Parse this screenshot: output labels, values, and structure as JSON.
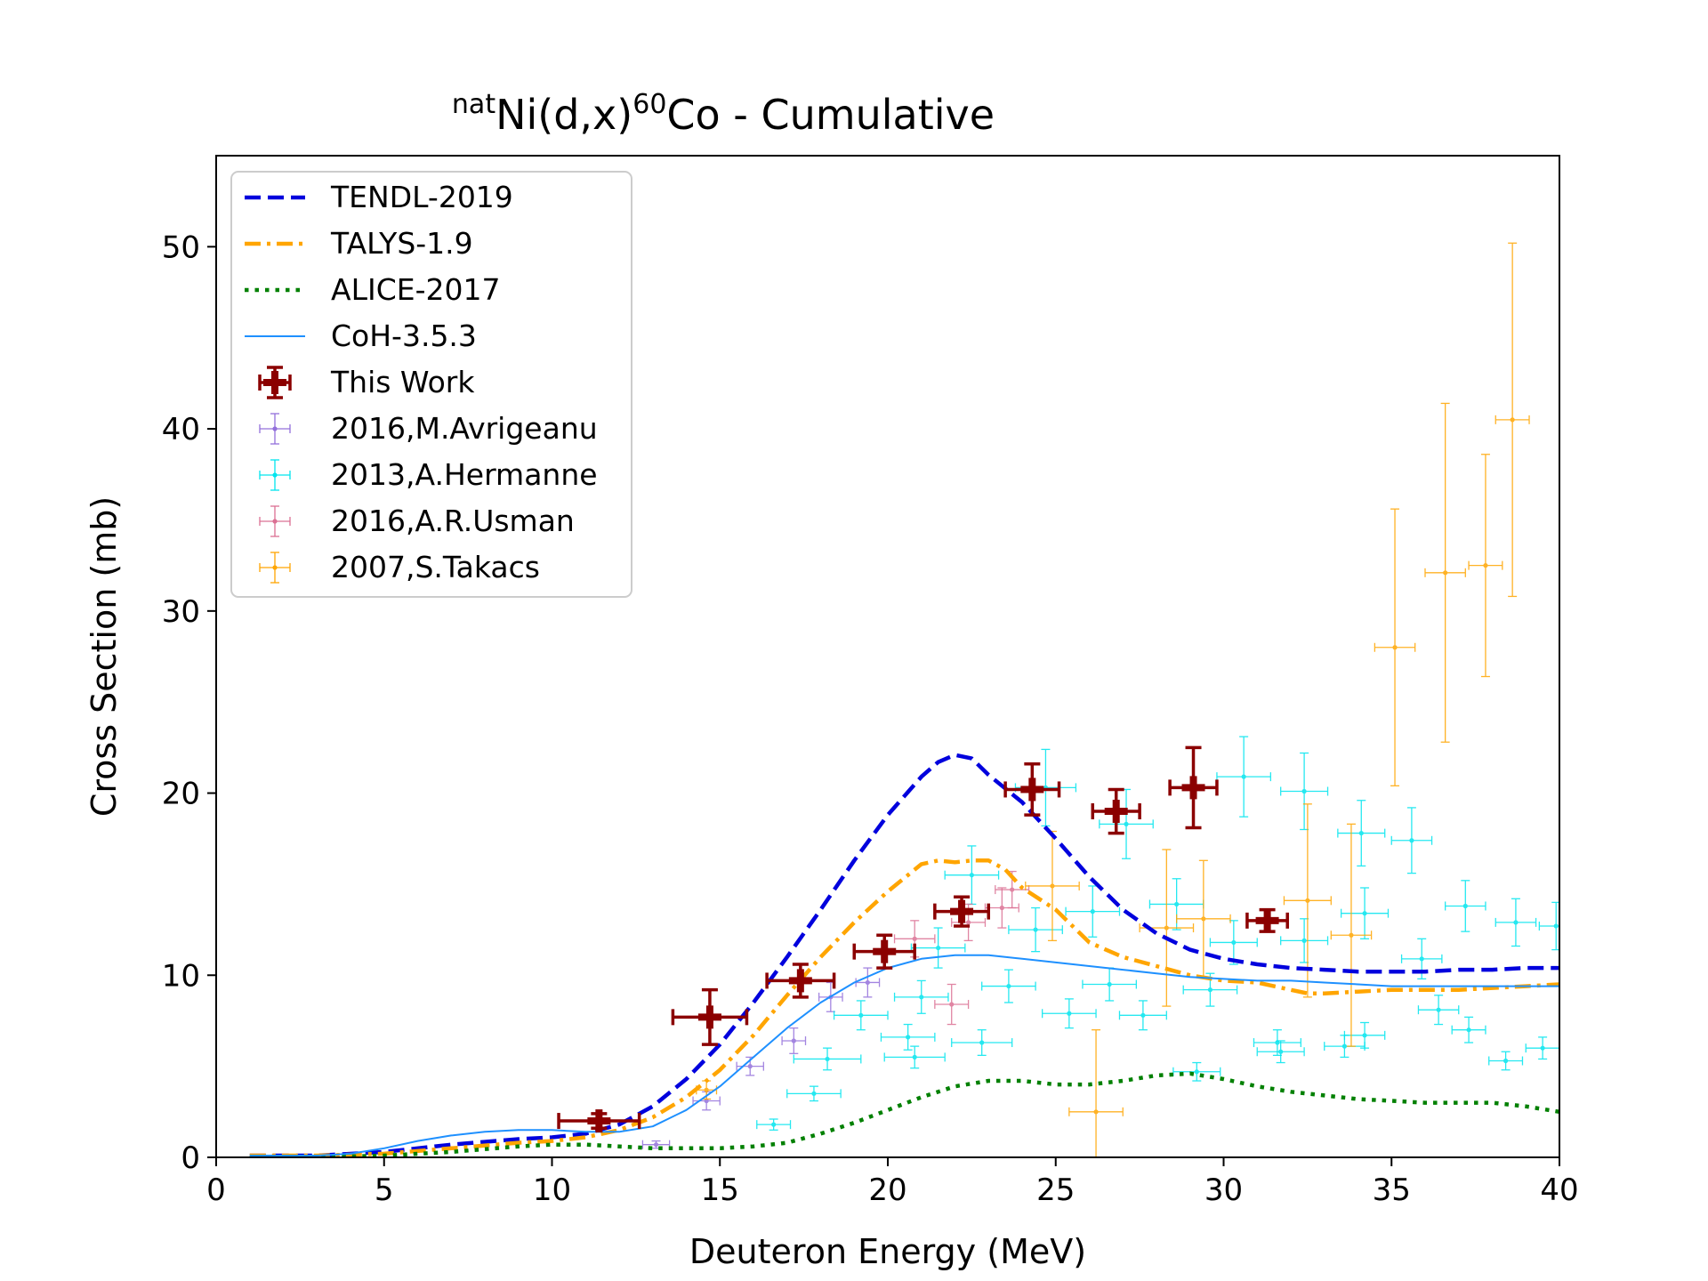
{
  "chart_data": {
    "type": "scatter",
    "title": {
      "prefix_sup": "nat",
      "element": "Ni(d,x)",
      "product_sup": "60",
      "product": "Co - Cumulative"
    },
    "xlabel": "Deuteron Energy (MeV)",
    "ylabel": "Cross Section (mb)",
    "xlim": [
      0,
      40
    ],
    "ylim": [
      0,
      55
    ],
    "xticks": [
      "0",
      "5",
      "10",
      "15",
      "20",
      "25",
      "30",
      "35",
      "40"
    ],
    "yticks": [
      "0",
      "10",
      "20",
      "30",
      "40",
      "50"
    ],
    "grid": false,
    "legend_position": "upper-left",
    "curves": [
      {
        "name": "TENDL-2019",
        "color": "#0000dd",
        "style": "dashed",
        "x": [
          1,
          3,
          5,
          7,
          9,
          10,
          11,
          12,
          13,
          14,
          15,
          16,
          17,
          18,
          19,
          20,
          21,
          21.5,
          22,
          22.5,
          23,
          24,
          25,
          26,
          27,
          28,
          29,
          30,
          31,
          32,
          33,
          34,
          35,
          36,
          37,
          38,
          39,
          40
        ],
        "y": [
          0.1,
          0.1,
          0.3,
          0.7,
          1.0,
          1.1,
          1.3,
          1.8,
          2.8,
          4.3,
          6.2,
          8.5,
          11.0,
          13.6,
          16.3,
          18.8,
          20.9,
          21.7,
          22.1,
          21.9,
          21.0,
          19.5,
          17.5,
          15.4,
          13.6,
          12.3,
          11.4,
          10.9,
          10.6,
          10.4,
          10.3,
          10.2,
          10.2,
          10.2,
          10.3,
          10.3,
          10.4,
          10.4
        ]
      },
      {
        "name": "TALYS-1.9",
        "color": "#ffa500",
        "style": "dashdot",
        "x": [
          1,
          3,
          5,
          7,
          9,
          10,
          11,
          12,
          13,
          14,
          15,
          16,
          17,
          18,
          19,
          20,
          21,
          21.5,
          22,
          22.5,
          23,
          23.5,
          24,
          25,
          26,
          27,
          28,
          29,
          30,
          31,
          32,
          32.5,
          33,
          34,
          35,
          36,
          37,
          38,
          39,
          40
        ],
        "y": [
          0.1,
          0.1,
          0.2,
          0.5,
          0.8,
          0.9,
          1.1,
          1.5,
          2.2,
          3.3,
          4.8,
          6.7,
          8.9,
          11.0,
          12.9,
          14.6,
          16.1,
          16.3,
          16.2,
          16.3,
          16.3,
          15.8,
          14.8,
          13.6,
          11.8,
          11.0,
          10.5,
          10.0,
          9.7,
          9.6,
          9.2,
          9.0,
          9.0,
          9.1,
          9.2,
          9.2,
          9.2,
          9.3,
          9.4,
          9.5
        ]
      },
      {
        "name": "ALICE-2017",
        "color": "#008000",
        "style": "dotted",
        "x": [
          1,
          3,
          5,
          7,
          9,
          10,
          11,
          12,
          13,
          14,
          15,
          16,
          17,
          18,
          19,
          20,
          21,
          22,
          23,
          24,
          25,
          26,
          27,
          28,
          29,
          30,
          31,
          32,
          33,
          34,
          35,
          36,
          37,
          38,
          39,
          40
        ],
        "y": [
          0.0,
          0.0,
          0.1,
          0.3,
          0.6,
          0.7,
          0.7,
          0.6,
          0.5,
          0.5,
          0.5,
          0.6,
          0.8,
          1.3,
          1.9,
          2.6,
          3.3,
          3.9,
          4.2,
          4.2,
          4.0,
          4.0,
          4.2,
          4.5,
          4.6,
          4.3,
          3.9,
          3.6,
          3.4,
          3.2,
          3.1,
          3.0,
          3.0,
          3.0,
          2.8,
          2.5
        ]
      },
      {
        "name": "CoH-3.5.3",
        "color": "#1e90ff",
        "style": "solid",
        "x": [
          1,
          3,
          4,
          5,
          6,
          7,
          8,
          9,
          10,
          11,
          12,
          13,
          14,
          15,
          16,
          17,
          18,
          19,
          20,
          21,
          22,
          23,
          24,
          25,
          26,
          27,
          28,
          29,
          30,
          31,
          32,
          33,
          34,
          35,
          36,
          37,
          38,
          39,
          40
        ],
        "y": [
          0.1,
          0.1,
          0.2,
          0.5,
          0.9,
          1.2,
          1.4,
          1.5,
          1.5,
          1.4,
          1.4,
          1.7,
          2.6,
          3.9,
          5.5,
          7.1,
          8.5,
          9.6,
          10.4,
          10.9,
          11.1,
          11.1,
          10.9,
          10.7,
          10.5,
          10.3,
          10.1,
          9.9,
          9.8,
          9.7,
          9.7,
          9.6,
          9.5,
          9.4,
          9.4,
          9.4,
          9.4,
          9.4,
          9.4
        ]
      }
    ],
    "series": [
      {
        "name": "This Work",
        "color": "#8b0000",
        "marker": "plus",
        "points": [
          {
            "x": 11.4,
            "y": 2.0,
            "xerr": 1.2,
            "yerr": 0.4
          },
          {
            "x": 14.7,
            "y": 7.7,
            "xerr": 1.1,
            "yerr": 1.5
          },
          {
            "x": 17.4,
            "y": 9.7,
            "xerr": 1.0,
            "yerr": 0.9
          },
          {
            "x": 19.9,
            "y": 11.3,
            "xerr": 0.9,
            "yerr": 0.9
          },
          {
            "x": 22.2,
            "y": 13.5,
            "xerr": 0.8,
            "yerr": 0.8
          },
          {
            "x": 24.3,
            "y": 20.2,
            "xerr": 0.8,
            "yerr": 1.4
          },
          {
            "x": 26.8,
            "y": 19.0,
            "xerr": 0.7,
            "yerr": 1.2
          },
          {
            "x": 29.1,
            "y": 20.3,
            "xerr": 0.7,
            "yerr": 2.2
          },
          {
            "x": 31.3,
            "y": 13.0,
            "xerr": 0.6,
            "yerr": 0.6
          }
        ]
      },
      {
        "name": "2016,M.Avrigeanu",
        "color": "#9370db",
        "marker": "dot",
        "points": [
          {
            "x": 13.1,
            "y": 0.7,
            "xerr": 0.4,
            "yerr": 0.2
          },
          {
            "x": 14.6,
            "y": 3.1,
            "xerr": 0.4,
            "yerr": 0.5
          },
          {
            "x": 15.9,
            "y": 5.0,
            "xerr": 0.4,
            "yerr": 0.5
          },
          {
            "x": 17.2,
            "y": 6.4,
            "xerr": 0.35,
            "yerr": 0.7
          },
          {
            "x": 18.3,
            "y": 8.8,
            "xerr": 0.35,
            "yerr": 0.8
          },
          {
            "x": 19.4,
            "y": 9.6,
            "xerr": 0.35,
            "yerr": 0.8
          }
        ]
      },
      {
        "name": "2013,A.Hermanne",
        "color": "#00e5ee",
        "marker": "dot",
        "points": [
          {
            "x": 16.6,
            "y": 1.8,
            "xerr": 0.5,
            "yerr": 0.3
          },
          {
            "x": 17.8,
            "y": 3.5,
            "xerr": 0.8,
            "yerr": 0.4
          },
          {
            "x": 18.2,
            "y": 5.4,
            "xerr": 1.0,
            "yerr": 0.6
          },
          {
            "x": 19.2,
            "y": 7.8,
            "xerr": 0.8,
            "yerr": 0.8
          },
          {
            "x": 20.6,
            "y": 6.6,
            "xerr": 0.8,
            "yerr": 0.7
          },
          {
            "x": 20.8,
            "y": 5.5,
            "xerr": 0.9,
            "yerr": 0.6
          },
          {
            "x": 21.0,
            "y": 8.8,
            "xerr": 0.8,
            "yerr": 0.9
          },
          {
            "x": 21.5,
            "y": 11.5,
            "xerr": 0.8,
            "yerr": 1.1
          },
          {
            "x": 22.5,
            "y": 15.5,
            "xerr": 0.8,
            "yerr": 1.6
          },
          {
            "x": 22.8,
            "y": 6.3,
            "xerr": 0.9,
            "yerr": 0.7
          },
          {
            "x": 23.6,
            "y": 9.4,
            "xerr": 0.8,
            "yerr": 0.9
          },
          {
            "x": 24.4,
            "y": 12.5,
            "xerr": 0.8,
            "yerr": 1.2
          },
          {
            "x": 24.7,
            "y": 20.3,
            "xerr": 0.9,
            "yerr": 2.1
          },
          {
            "x": 25.4,
            "y": 7.9,
            "xerr": 0.8,
            "yerr": 0.8
          },
          {
            "x": 26.1,
            "y": 13.5,
            "xerr": 0.8,
            "yerr": 1.4
          },
          {
            "x": 26.6,
            "y": 9.5,
            "xerr": 0.8,
            "yerr": 0.9
          },
          {
            "x": 27.1,
            "y": 18.3,
            "xerr": 0.8,
            "yerr": 1.9
          },
          {
            "x": 27.6,
            "y": 7.8,
            "xerr": 0.7,
            "yerr": 0.8
          },
          {
            "x": 28.6,
            "y": 13.9,
            "xerr": 0.8,
            "yerr": 1.4
          },
          {
            "x": 29.2,
            "y": 4.7,
            "xerr": 0.7,
            "yerr": 0.5
          },
          {
            "x": 29.6,
            "y": 9.2,
            "xerr": 0.8,
            "yerr": 0.9
          },
          {
            "x": 30.3,
            "y": 11.8,
            "xerr": 0.7,
            "yerr": 1.2
          },
          {
            "x": 30.6,
            "y": 20.9,
            "xerr": 0.8,
            "yerr": 2.2
          },
          {
            "x": 31.6,
            "y": 6.3,
            "xerr": 0.7,
            "yerr": 0.7
          },
          {
            "x": 31.7,
            "y": 5.8,
            "xerr": 0.7,
            "yerr": 0.6
          },
          {
            "x": 32.4,
            "y": 20.1,
            "xerr": 0.7,
            "yerr": 2.1
          },
          {
            "x": 32.4,
            "y": 11.9,
            "xerr": 0.7,
            "yerr": 1.2
          },
          {
            "x": 33.6,
            "y": 6.1,
            "xerr": 0.6,
            "yerr": 0.6
          },
          {
            "x": 34.1,
            "y": 17.8,
            "xerr": 0.7,
            "yerr": 1.8
          },
          {
            "x": 34.2,
            "y": 13.4,
            "xerr": 0.7,
            "yerr": 1.4
          },
          {
            "x": 34.2,
            "y": 6.7,
            "xerr": 0.6,
            "yerr": 0.7
          },
          {
            "x": 35.6,
            "y": 17.4,
            "xerr": 0.6,
            "yerr": 1.8
          },
          {
            "x": 35.9,
            "y": 10.9,
            "xerr": 0.6,
            "yerr": 1.1
          },
          {
            "x": 36.4,
            "y": 8.1,
            "xerr": 0.6,
            "yerr": 0.8
          },
          {
            "x": 37.2,
            "y": 13.8,
            "xerr": 0.6,
            "yerr": 1.4
          },
          {
            "x": 37.3,
            "y": 7.0,
            "xerr": 0.5,
            "yerr": 0.7
          },
          {
            "x": 38.4,
            "y": 5.3,
            "xerr": 0.5,
            "yerr": 0.5
          },
          {
            "x": 38.7,
            "y": 12.9,
            "xerr": 0.6,
            "yerr": 1.3
          },
          {
            "x": 39.5,
            "y": 6.0,
            "xerr": 0.5,
            "yerr": 0.6
          },
          {
            "x": 39.9,
            "y": 12.7,
            "xerr": 0.5,
            "yerr": 1.3
          }
        ]
      },
      {
        "name": "2016,A.R.Usman",
        "color": "#db7093",
        "marker": "dot",
        "points": [
          {
            "x": 20.8,
            "y": 12.0,
            "xerr": 0.6,
            "yerr": 1.0
          },
          {
            "x": 21.9,
            "y": 8.4,
            "xerr": 0.5,
            "yerr": 1.1
          },
          {
            "x": 22.4,
            "y": 12.9,
            "xerr": 0.5,
            "yerr": 1.0
          },
          {
            "x": 23.4,
            "y": 13.7,
            "xerr": 0.5,
            "yerr": 1.1
          },
          {
            "x": 23.7,
            "y": 14.7,
            "xerr": 0.5,
            "yerr": 1.0
          }
        ]
      },
      {
        "name": "2007,S.Takacs",
        "color": "#ffa500",
        "marker": "dot",
        "points": [
          {
            "x": 14.6,
            "y": 3.7,
            "xerr": 0.3,
            "yerr": 0.5
          },
          {
            "x": 24.9,
            "y": 14.9,
            "xerr": 0.8,
            "yerr": 3.0
          },
          {
            "x": 26.2,
            "y": 2.5,
            "xerr": 0.8,
            "yerr": 4.5
          },
          {
            "x": 28.3,
            "y": 12.6,
            "xerr": 0.8,
            "yerr": 4.3
          },
          {
            "x": 29.4,
            "y": 13.1,
            "xerr": 0.8,
            "yerr": 3.2
          },
          {
            "x": 32.5,
            "y": 14.1,
            "xerr": 0.7,
            "yerr": 5.3
          },
          {
            "x": 33.8,
            "y": 12.2,
            "xerr": 0.6,
            "yerr": 6.1
          },
          {
            "x": 35.1,
            "y": 28.0,
            "xerr": 0.6,
            "yerr": 7.6
          },
          {
            "x": 36.6,
            "y": 32.1,
            "xerr": 0.6,
            "yerr": 9.3
          },
          {
            "x": 37.8,
            "y": 32.5,
            "xerr": 0.5,
            "yerr": 6.1
          },
          {
            "x": 38.6,
            "y": 40.5,
            "xerr": 0.5,
            "yerr": 9.7
          }
        ]
      }
    ]
  }
}
